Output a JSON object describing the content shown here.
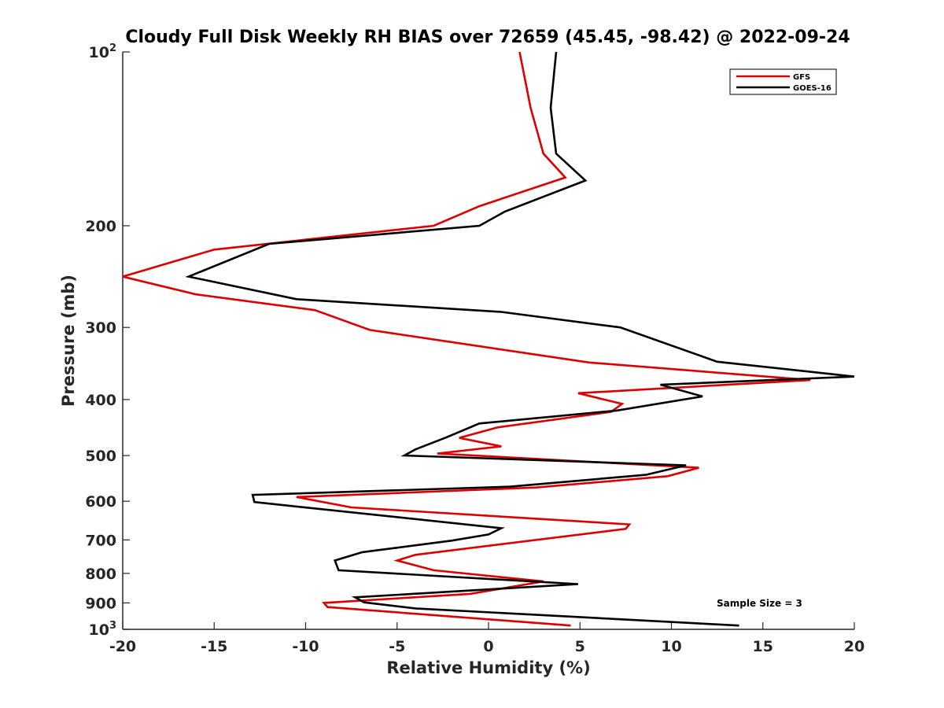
{
  "chart_data": {
    "type": "line",
    "title": "Cloudy Full Disk Weekly RH BIAS over 72659 (45.45, -98.42) @ 2022-09-24",
    "xlabel": "Relative Humidity (%)",
    "ylabel": "Pressure (mb)",
    "xlim": [
      -20,
      20
    ],
    "ylim": [
      100,
      1000
    ],
    "yscale": "log",
    "y_reversed": true,
    "xticks": [
      -20,
      -15,
      -10,
      -5,
      0,
      5,
      10,
      15,
      20
    ],
    "yticks": [
      100,
      200,
      300,
      400,
      500,
      600,
      700,
      800,
      900,
      1000
    ],
    "ytick_labels": [
      "10^2",
      "200",
      "300",
      "400",
      "500",
      "600",
      "700",
      "800",
      "900",
      "10^3"
    ],
    "grid": false,
    "legend_placement": "top-right",
    "annotation": "Sample Size = 3",
    "series": [
      {
        "name": "GFS",
        "color": "#dd0000",
        "x": [
          1.7,
          2.3,
          3.0,
          4.2,
          -0.5,
          -3.0,
          -15.0,
          -20.0,
          -16.0,
          -9.5,
          -6.5,
          5.5,
          17.6,
          4.9,
          7.3,
          6.7,
          0.5,
          -1.6,
          0.7,
          -2.8,
          11.5,
          9.8,
          2.6,
          -10.5,
          -7.5,
          7.7,
          7.5,
          -4.0,
          -5.0,
          -3.0,
          3.0,
          -1.0,
          -9.0,
          -8.8,
          4.5
        ],
        "y": [
          100,
          125,
          150,
          165,
          185,
          200,
          220,
          245,
          263,
          280,
          303,
          345,
          370,
          390,
          407,
          420,
          447,
          466,
          482,
          496,
          525,
          543,
          568,
          590,
          615,
          658,
          670,
          743,
          760,
          790,
          826,
          868,
          900,
          915,
          985
        ]
      },
      {
        "name": "GOES-16",
        "color": "#000000",
        "x": [
          3.7,
          3.4,
          3.7,
          5.3,
          0.9,
          -0.5,
          -12.0,
          -16.4,
          -10.5,
          0.7,
          7.2,
          12.5,
          20.0,
          9.4,
          11.7,
          7.0,
          -0.5,
          -2.3,
          -4.0,
          -4.6,
          10.8,
          8.6,
          1.2,
          -12.9,
          -12.8,
          0.7,
          0.0,
          -2.0,
          -6.9,
          -8.4,
          -8.2,
          4.9,
          -7.3,
          -6.8,
          -4.0,
          13.7
        ],
        "y": [
          100,
          125,
          150,
          167,
          189,
          200,
          215,
          245,
          268,
          282,
          300,
          344,
          365,
          377,
          395,
          418,
          440,
          465,
          488,
          500,
          520,
          540,
          566,
          585,
          602,
          668,
          685,
          702,
          735,
          760,
          790,
          835,
          880,
          898,
          920,
          985
        ]
      }
    ]
  }
}
